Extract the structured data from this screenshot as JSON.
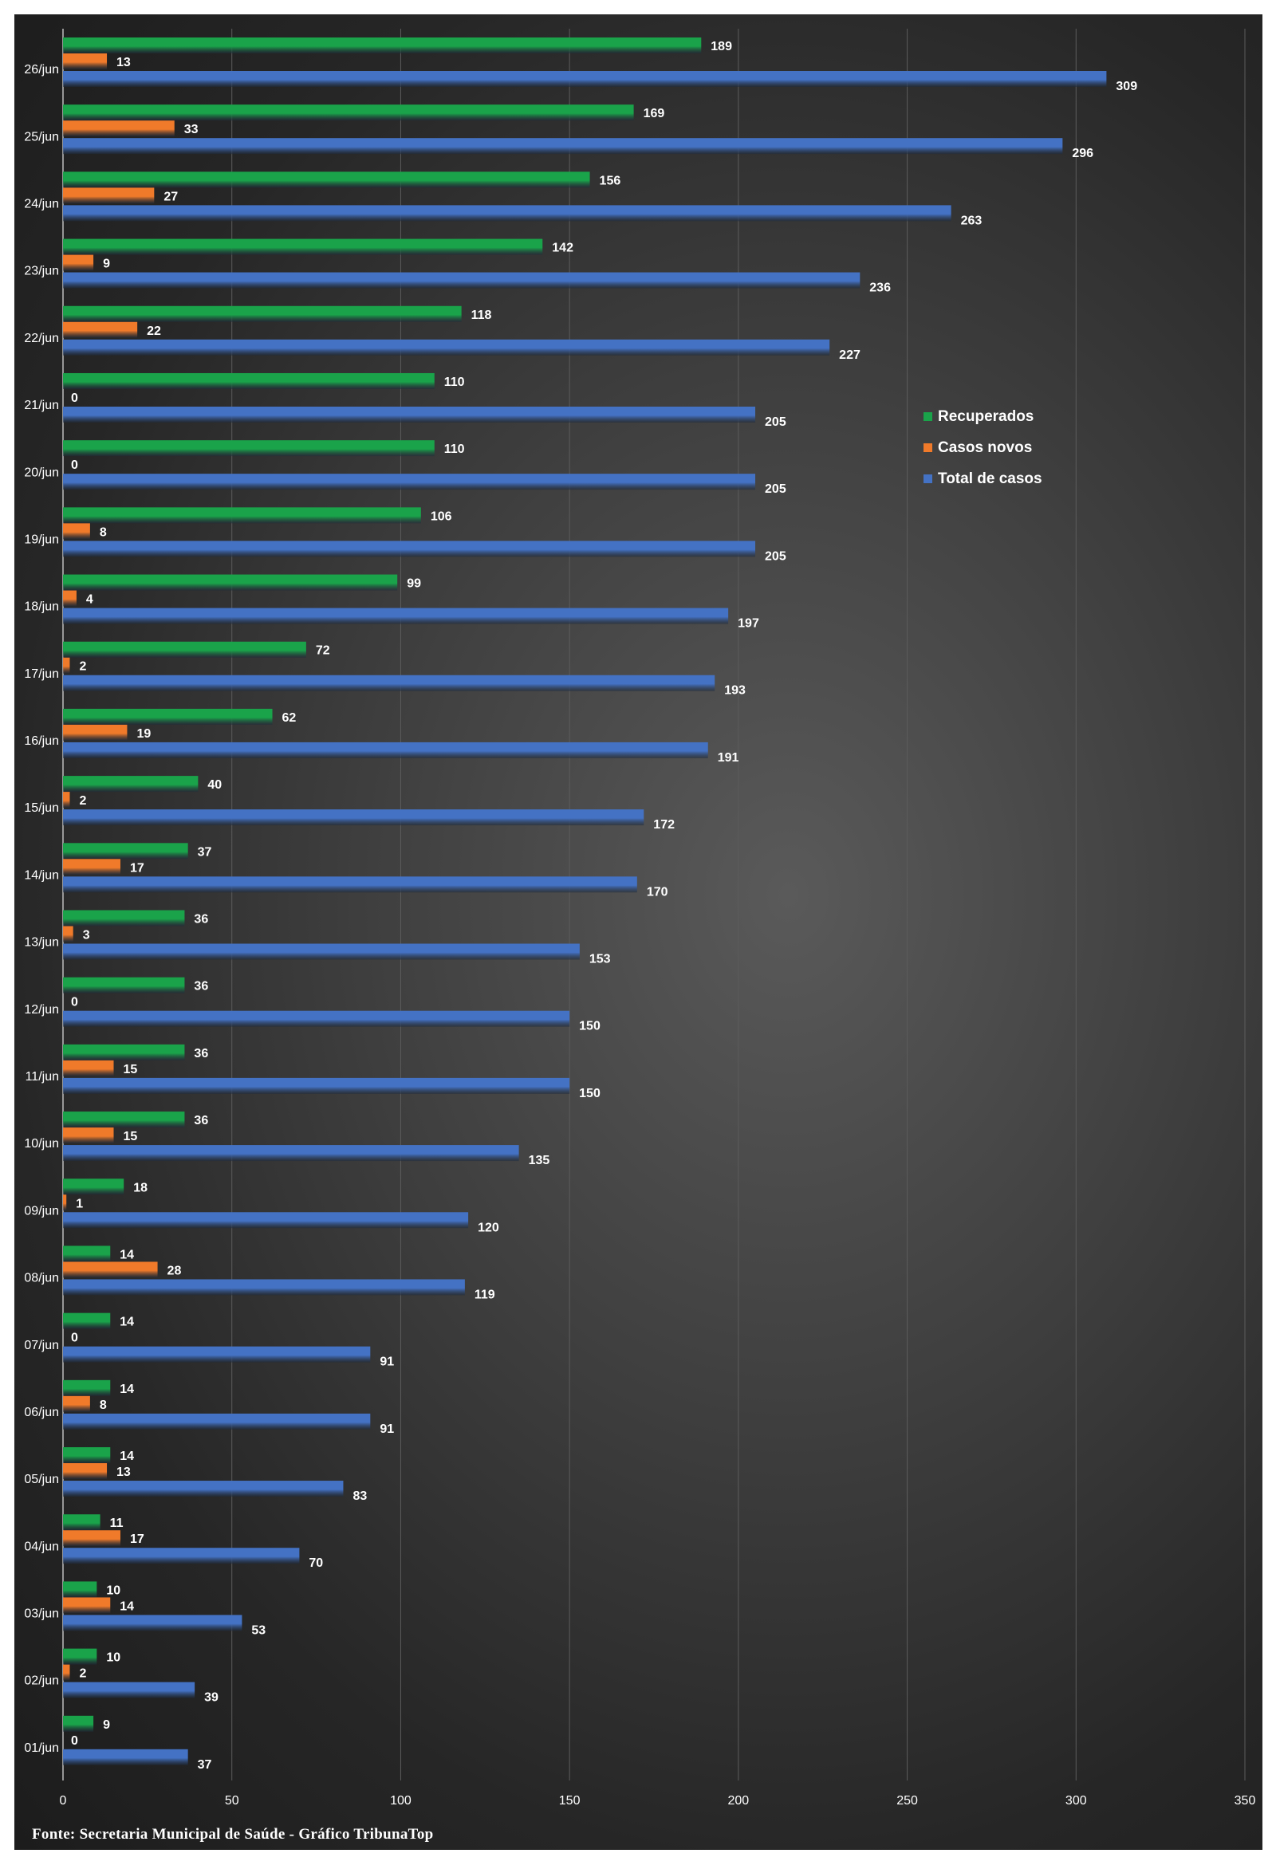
{
  "footer": "Fonte: Secretaria Municipal de Saúde - Gráfico TribunaTop",
  "colors": {
    "recuperados": "#1aa34a",
    "casos_novos": "#f07a2a",
    "total": "#4472c4",
    "grid": "#5c5c5c",
    "text": "#ffffff"
  },
  "chart_data": {
    "type": "bar",
    "orientation": "horizontal",
    "categories": [
      "01/jun",
      "02/jun",
      "03/jun",
      "04/jun",
      "05/jun",
      "06/jun",
      "07/jun",
      "08/jun",
      "09/jun",
      "10/jun",
      "11/jun",
      "12/jun",
      "13/jun",
      "14/jun",
      "15/jun",
      "16/jun",
      "17/jun",
      "18/jun",
      "19/jun",
      "20/jun",
      "21/jun",
      "22/jun",
      "23/jun",
      "24/jun",
      "25/jun",
      "26/jun"
    ],
    "series": [
      {
        "name": "Recuperados",
        "values": [
          9,
          10,
          10,
          11,
          14,
          14,
          14,
          14,
          18,
          36,
          36,
          36,
          36,
          37,
          40,
          62,
          72,
          99,
          106,
          110,
          110,
          118,
          142,
          156,
          169,
          189
        ]
      },
      {
        "name": "Casos novos",
        "values": [
          0,
          2,
          14,
          17,
          13,
          8,
          0,
          28,
          1,
          15,
          15,
          0,
          3,
          17,
          2,
          19,
          2,
          4,
          8,
          0,
          0,
          22,
          9,
          27,
          33,
          13
        ]
      },
      {
        "name": "Total de casos",
        "values": [
          37,
          39,
          53,
          70,
          83,
          91,
          91,
          119,
          120,
          135,
          150,
          150,
          153,
          170,
          172,
          191,
          193,
          197,
          205,
          205,
          205,
          227,
          236,
          263,
          296,
          309
        ]
      }
    ],
    "x_ticks": [
      "0",
      "50",
      "100",
      "150",
      "200",
      "250",
      "300",
      "350"
    ],
    "xlim": [
      0,
      350
    ],
    "grid": true,
    "legend_position": "right"
  }
}
